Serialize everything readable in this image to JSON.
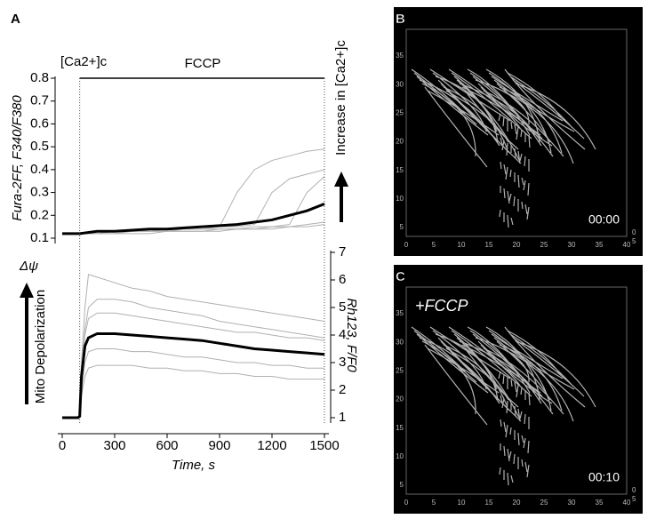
{
  "panel_label": "A",
  "chart_data": [
    {
      "type": "line",
      "annotations": [
        "[Ca2+]c",
        "FCCP"
      ],
      "y_label": "Fura-2FF, F340/F380",
      "side_label": "Increase in [Ca2+]c",
      "x": [
        0,
        100,
        200,
        300,
        400,
        500,
        600,
        700,
        800,
        900,
        1000,
        1100,
        1200,
        1300,
        1400,
        1500
      ],
      "xlim": [
        0,
        1500
      ],
      "ylim": [
        0.1,
        0.8
      ],
      "yticks": [
        0.1,
        0.2,
        0.3,
        0.4,
        0.5,
        0.6,
        0.7,
        0.8
      ],
      "series": [
        {
          "color": "#b0b0b0",
          "values": [
            0.12,
            0.12,
            0.13,
            0.13,
            0.13,
            0.14,
            0.14,
            0.14,
            0.15,
            0.15,
            0.3,
            0.4,
            0.44,
            0.46,
            0.48,
            0.49
          ]
        },
        {
          "color": "#b0b0b0",
          "values": [
            0.12,
            0.12,
            0.13,
            0.13,
            0.13,
            0.13,
            0.14,
            0.14,
            0.14,
            0.15,
            0.15,
            0.16,
            0.3,
            0.36,
            0.38,
            0.4
          ]
        },
        {
          "color": "#b0b0b0",
          "values": [
            0.12,
            0.12,
            0.12,
            0.13,
            0.13,
            0.13,
            0.13,
            0.14,
            0.14,
            0.14,
            0.14,
            0.15,
            0.15,
            0.16,
            0.3,
            0.37
          ]
        },
        {
          "color": "#b0b0b0",
          "values": [
            0.12,
            0.12,
            0.12,
            0.12,
            0.13,
            0.13,
            0.13,
            0.13,
            0.13,
            0.14,
            0.14,
            0.14,
            0.15,
            0.15,
            0.16,
            0.17
          ]
        },
        {
          "color": "#b0b0b0",
          "values": [
            0.12,
            0.12,
            0.12,
            0.12,
            0.12,
            0.12,
            0.13,
            0.13,
            0.13,
            0.13,
            0.14,
            0.14,
            0.14,
            0.15,
            0.15,
            0.16
          ]
        },
        {
          "color": "#000000",
          "values": [
            0.12,
            0.12,
            0.13,
            0.13,
            0.135,
            0.14,
            0.14,
            0.145,
            0.15,
            0.155,
            0.16,
            0.17,
            0.18,
            0.2,
            0.22,
            0.25
          ]
        }
      ]
    },
    {
      "type": "line",
      "annotations": [
        "Δψ"
      ],
      "y_label": "Rh123, F/F0",
      "side_label": "Mito Depolarization",
      "x_label": "Time, s",
      "yaxis_side": "right",
      "x": [
        0,
        90,
        100,
        110,
        130,
        150,
        200,
        300,
        400,
        500,
        600,
        700,
        800,
        900,
        1000,
        1100,
        1200,
        1300,
        1400,
        1500
      ],
      "xlim": [
        0,
        1500
      ],
      "xticks": [
        0,
        300,
        600,
        900,
        1200,
        1500
      ],
      "ylim": [
        1,
        7
      ],
      "yticks": [
        1,
        2,
        3,
        4,
        5,
        6,
        7
      ],
      "series": [
        {
          "color": "#b0b0b0",
          "values": [
            1,
            1,
            1.1,
            3,
            5,
            6.2,
            6.1,
            5.9,
            5.7,
            5.6,
            5.4,
            5.3,
            5.2,
            5.1,
            5.0,
            4.9,
            4.8,
            4.7,
            4.6,
            4.5
          ]
        },
        {
          "color": "#b0b0b0",
          "values": [
            1,
            1,
            1.1,
            2.5,
            4,
            4.6,
            4.8,
            4.8,
            4.7,
            4.6,
            4.5,
            4.4,
            4.3,
            4.2,
            4.1,
            4.1,
            4.0,
            3.9,
            3.9,
            3.8
          ]
        },
        {
          "color": "#b0b0b0",
          "values": [
            1,
            1,
            1.05,
            2,
            3,
            3.4,
            3.5,
            3.5,
            3.4,
            3.4,
            3.3,
            3.2,
            3.2,
            3.1,
            3.0,
            3.0,
            2.9,
            2.9,
            2.8,
            2.8
          ]
        },
        {
          "color": "#b0b0b0",
          "values": [
            1,
            1,
            1.05,
            1.8,
            2.5,
            2.8,
            2.9,
            2.9,
            2.9,
            2.8,
            2.8,
            2.7,
            2.7,
            2.6,
            2.6,
            2.5,
            2.5,
            2.4,
            2.4,
            2.4
          ]
        },
        {
          "color": "#b0b0b0",
          "values": [
            1,
            1,
            1.1,
            2.8,
            4.2,
            5.0,
            5.3,
            5.3,
            5.2,
            5.0,
            4.9,
            4.8,
            4.7,
            4.5,
            4.4,
            4.3,
            4.2,
            4.1,
            4.0,
            3.9
          ]
        },
        {
          "color": "#000000",
          "values": [
            1,
            1,
            1.05,
            2.5,
            3.6,
            3.9,
            4.05,
            4.05,
            4.0,
            3.95,
            3.9,
            3.85,
            3.8,
            3.7,
            3.6,
            3.5,
            3.45,
            3.4,
            3.35,
            3.3
          ]
        }
      ]
    }
  ],
  "images": [
    {
      "label": "B",
      "time": "00:00",
      "xticks": [
        0,
        5,
        10,
        15,
        20,
        25,
        30,
        35,
        40
      ],
      "yticks": [
        5,
        10,
        15,
        20,
        25,
        30,
        35
      ],
      "zticks": [
        0,
        5
      ]
    },
    {
      "label": "C",
      "annotation": "+FCCP",
      "time": "00:10",
      "xticks": [
        0,
        5,
        10,
        15,
        20,
        25,
        30,
        35,
        40
      ],
      "yticks": [
        5,
        10,
        15,
        20,
        25,
        30,
        35
      ],
      "zticks": [
        0,
        5
      ]
    }
  ]
}
